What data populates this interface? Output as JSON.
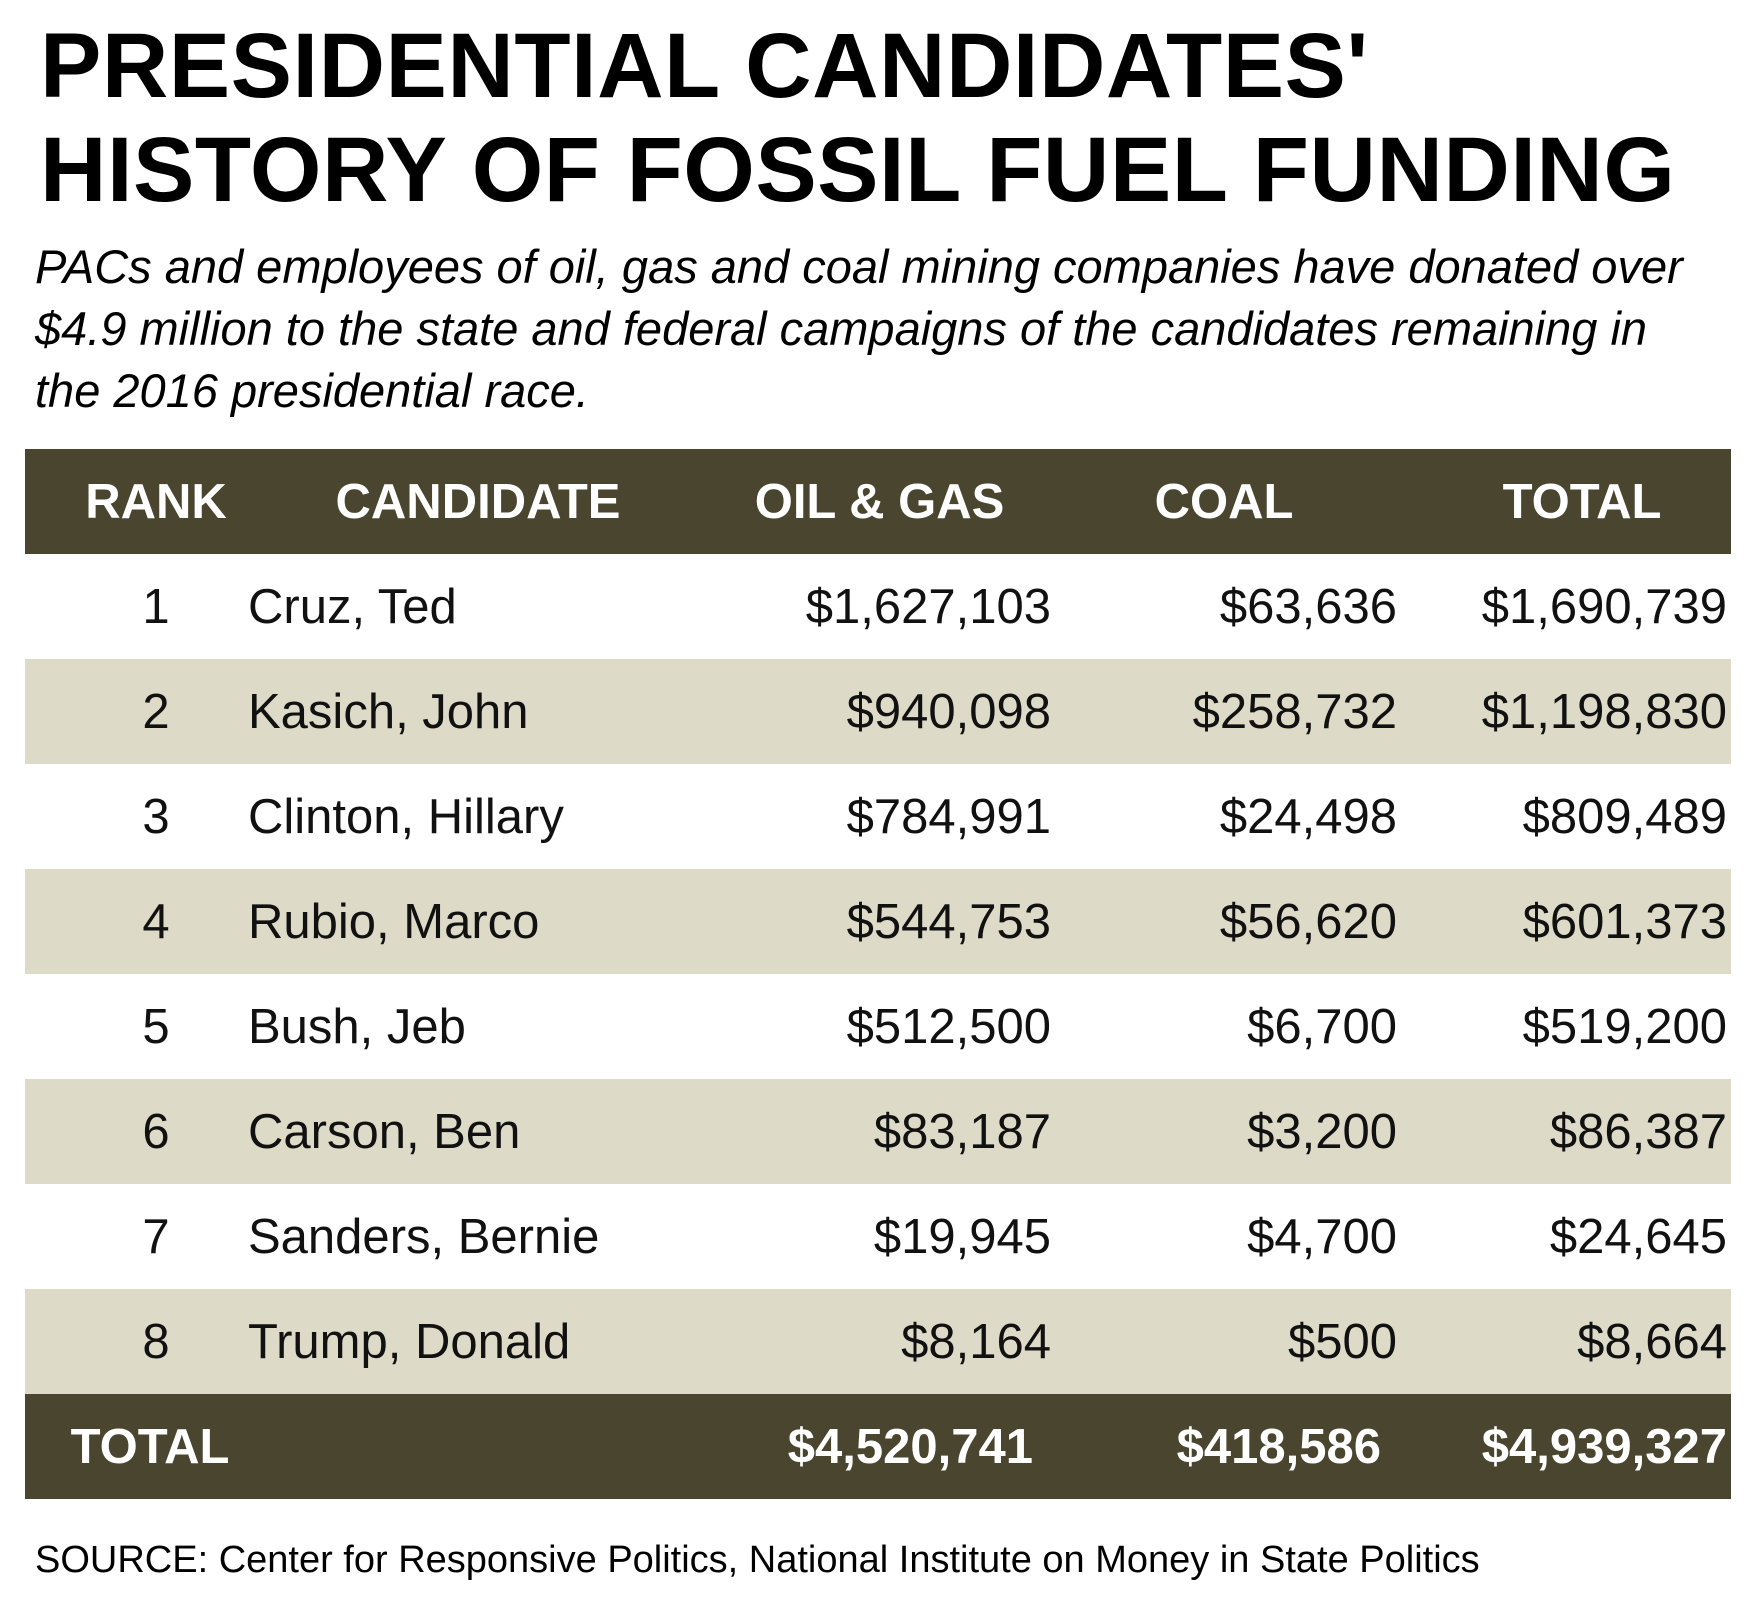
{
  "title": "PRESIDENTIAL CANDIDATES' HISTORY OF FOSSIL FUEL FUNDING",
  "subtitle": "PACs and employees of oil, gas and coal mining companies have donated over $4.9 million to the state and federal campaigns of the candidates remaining in the 2016 presidential race.",
  "source": "SOURCE: Center for Responsive Politics, National Institute on Money in State Politics",
  "colors": {
    "header_bg": "#49452f",
    "stripe_bg": "#dddac7",
    "header_text": "#ffffff"
  },
  "chart_data": {
    "type": "table",
    "title": "PRESIDENTIAL CANDIDATES' HISTORY OF FOSSIL FUEL FUNDING",
    "columns": [
      "RANK",
      "CANDIDATE",
      "OIL & GAS",
      "COAL",
      "TOTAL"
    ],
    "rows": [
      [
        "1",
        "Cruz, Ted",
        "$1,627,103",
        "$63,636",
        "$1,690,739"
      ],
      [
        "2",
        "Kasich, John",
        "$940,098",
        "$258,732",
        "$1,198,830"
      ],
      [
        "3",
        "Clinton, Hillary",
        "$784,991",
        "$24,498",
        "$809,489"
      ],
      [
        "4",
        "Rubio, Marco",
        "$544,753",
        "$56,620",
        "$601,373"
      ],
      [
        "5",
        "Bush, Jeb",
        "$512,500",
        "$6,700",
        "$519,200"
      ],
      [
        "6",
        "Carson, Ben",
        "$83,187",
        "$3,200",
        "$86,387"
      ],
      [
        "7",
        "Sanders, Bernie",
        "$19,945",
        "$4,700",
        "$24,645"
      ],
      [
        "8",
        "Trump, Donald",
        "$8,164",
        "$500",
        "$8,664"
      ]
    ],
    "total_row": [
      "TOTAL",
      "",
      "$4,520,741",
      "$418,586",
      "$4,939,327"
    ]
  }
}
